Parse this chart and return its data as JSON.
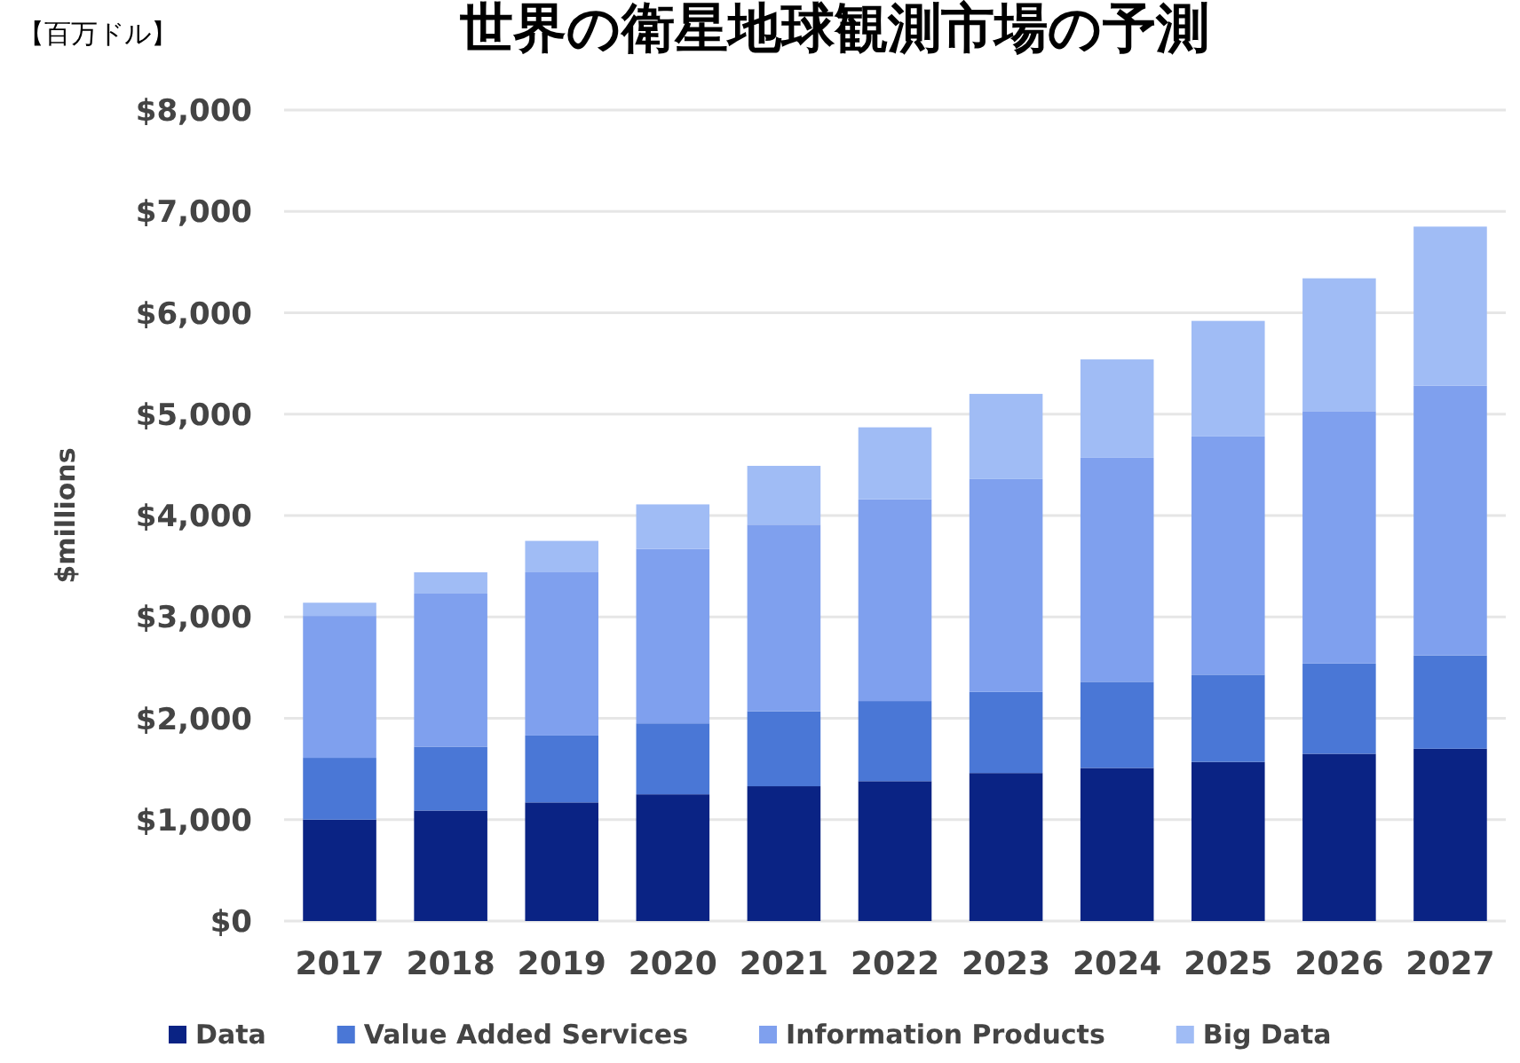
{
  "chart_data": {
    "type": "bar",
    "stacked": true,
    "title": "世界の衛星地球観測市場の予測",
    "annotations": [
      "【百万ドル】"
    ],
    "ylabel": "$millions",
    "categories": [
      "2017",
      "2018",
      "2019",
      "2020",
      "2021",
      "2022",
      "2023",
      "2024",
      "2025",
      "2026",
      "2027"
    ],
    "series": [
      {
        "name": "Data",
        "color": "#0a2384",
        "values": [
          1000,
          1090,
          1170,
          1250,
          1330,
          1380,
          1460,
          1510,
          1570,
          1650,
          1700
        ]
      },
      {
        "name": "Value Added Services",
        "color": "#4a77d6",
        "values": [
          610,
          630,
          660,
          700,
          740,
          790,
          800,
          850,
          860,
          890,
          920
        ]
      },
      {
        "name": "Information Products",
        "color": "#7fa0ee",
        "values": [
          1400,
          1510,
          1610,
          1720,
          1840,
          1990,
          2100,
          2210,
          2350,
          2490,
          2660
        ]
      },
      {
        "name": "Big Data",
        "color": "#a0bcf5",
        "values": [
          130,
          210,
          310,
          440,
          580,
          710,
          840,
          970,
          1140,
          1310,
          1570
        ]
      }
    ],
    "ylim": [
      0,
      8000
    ],
    "yticks": [
      {
        "value": 0,
        "label": "$0"
      },
      {
        "value": 1000,
        "label": "$1,000"
      },
      {
        "value": 2000,
        "label": "$2,000"
      },
      {
        "value": 3000,
        "label": "$3,000"
      },
      {
        "value": 4000,
        "label": "$4,000"
      },
      {
        "value": 5000,
        "label": "$5,000"
      },
      {
        "value": 6000,
        "label": "$6,000"
      },
      {
        "value": 7000,
        "label": "$7,000"
      },
      {
        "value": 8000,
        "label": "$8,000"
      }
    ],
    "grid": "y",
    "legend": "bottom"
  }
}
